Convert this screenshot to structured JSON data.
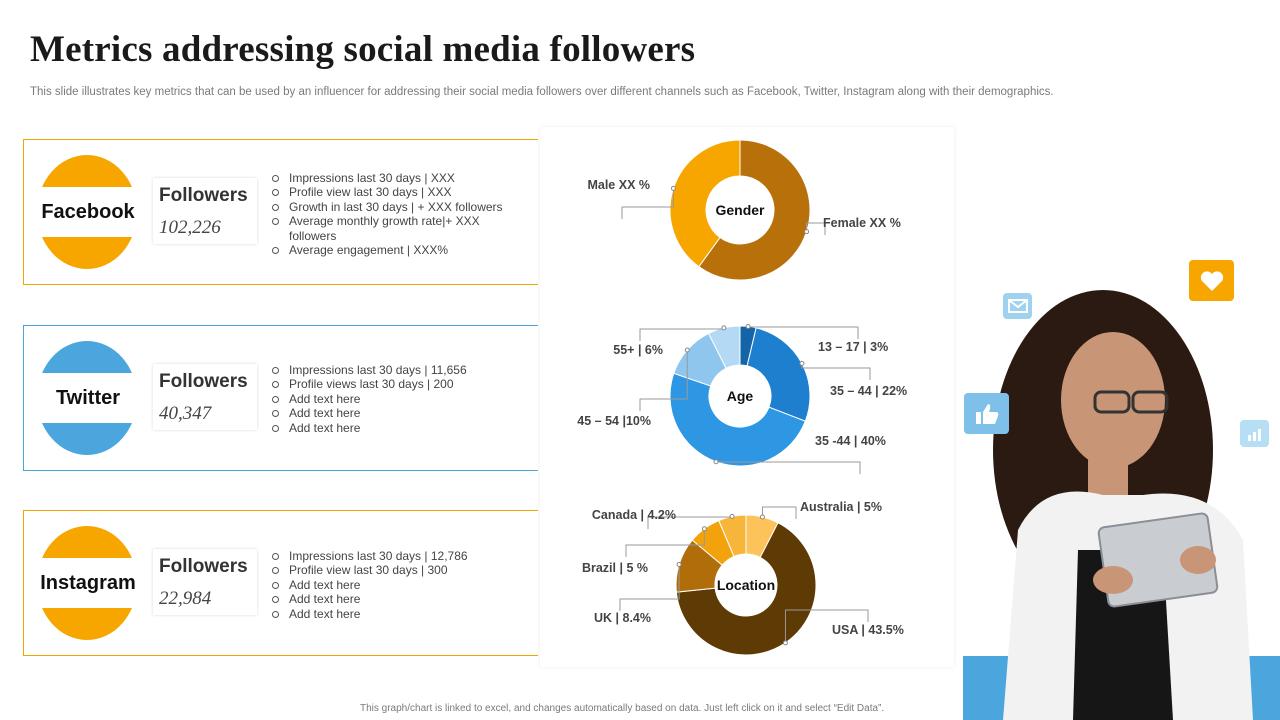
{
  "title": "Metrics addressing social media followers",
  "subtitle": "This slide illustrates key metrics that can be used by an influencer for addressing their social media followers over different channels such as Facebook, Twitter, Instagram along with their demographics.",
  "footnote": "This graph/chart is linked to excel, and changes automatically based on data. Just left click on it and select “Edit Data”.",
  "cards": {
    "facebook": {
      "name": "Facebook",
      "followers_label": "Followers",
      "followers_value": "102,226",
      "metrics": [
        "Impressions last  30 days | XXX",
        "Profile view last 30 days | XXX",
        "Growth in last 30 days  | + XXX  followers",
        "Average monthly growth rate|+ XXX followers",
        "Average engagement | XXX%"
      ]
    },
    "twitter": {
      "name": "Twitter",
      "followers_label": "Followers",
      "followers_value": "40,347",
      "metrics": [
        "Impressions last 30 days | 11,656",
        "Profile views last 30 days | 200",
        "Add text here",
        "Add text here",
        "Add text here"
      ]
    },
    "instagram": {
      "name": "Instagram",
      "followers_label": "Followers",
      "followers_value": "22,984",
      "metrics": [
        "Impressions last  30 days | 12,786",
        "Profile view last 30 days | 300",
        "Add text here",
        "Add text here",
        "Add text here"
      ]
    }
  },
  "icons": [
    "mail-icon",
    "heart-icon",
    "thumbs-up-icon",
    "bar-chart-icon"
  ],
  "colors": {
    "orange": "#f7a600",
    "blue": "#4aa6dd"
  },
  "chart_data": [
    {
      "type": "pie",
      "title": "Gender",
      "categories": [
        "Female XX %",
        "Male XX %"
      ],
      "values": [
        60,
        40
      ],
      "colors": [
        "#b8700b",
        "#f7a600"
      ]
    },
    {
      "type": "pie",
      "title": "Age",
      "categories": [
        "13 – 17 | 3%",
        "35 – 44 | 22%",
        "35 -44 | 40%",
        "45 – 54 |10%",
        "55+ | 6%"
      ],
      "values": [
        3,
        22,
        40,
        10,
        6
      ],
      "colors": [
        "#1464a8",
        "#1f7fcf",
        "#2e97e3",
        "#8ec6ee",
        "#b3d9f4"
      ]
    },
    {
      "type": "pie",
      "title": "Location",
      "categories": [
        "Australia | 5%",
        "USA | 43.5%",
        "UK | 8.4%",
        "Brazil | 5 %",
        "Canada | 4.2%"
      ],
      "values": [
        5,
        43.5,
        8.4,
        5,
        4.2
      ],
      "colors": [
        "#fbc35a",
        "#5e3a05",
        "#b06d0a",
        "#f2a20a",
        "#f7b53a"
      ]
    }
  ]
}
